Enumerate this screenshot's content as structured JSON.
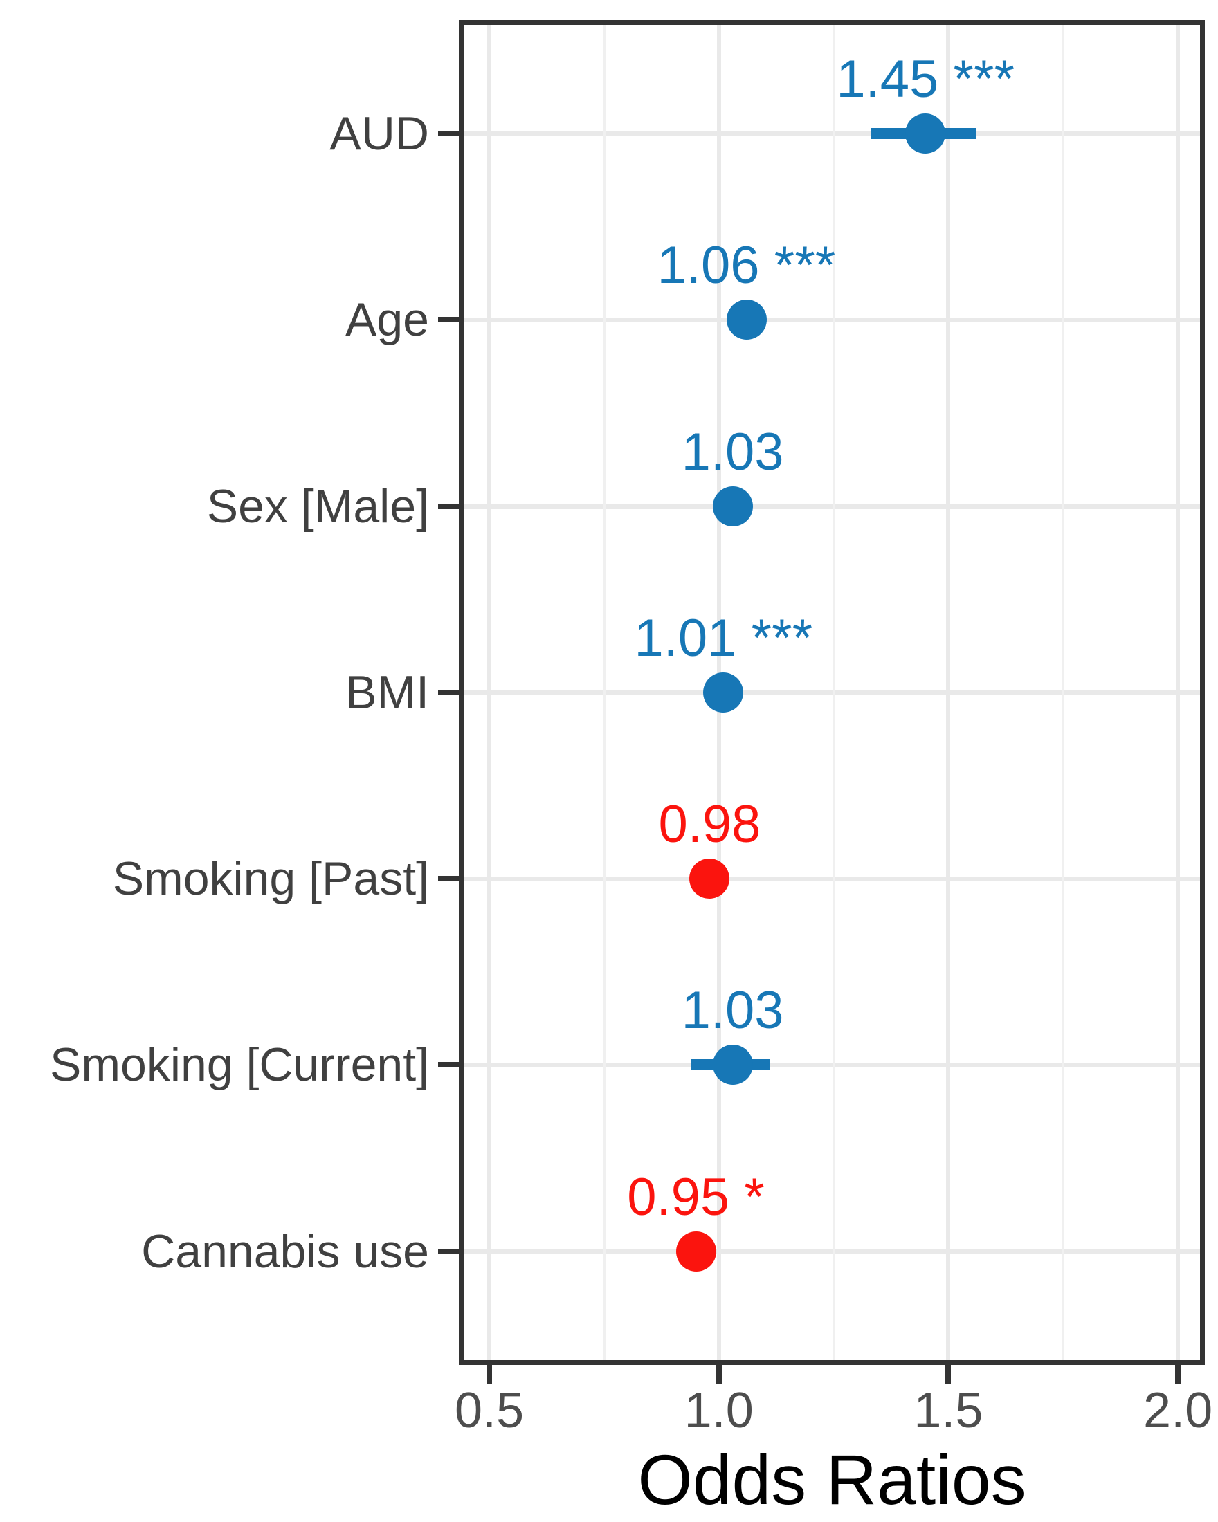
{
  "chart_data": {
    "type": "forest",
    "title": "",
    "xlabel": "Odds Ratios",
    "x_ticks": {
      "values": [
        0.5,
        1.0,
        1.5,
        2.0
      ],
      "labels": [
        "0.5",
        "1.0",
        "1.5",
        "2.0"
      ]
    },
    "x_minor_ticks": [
      0.75,
      1.25,
      1.75
    ],
    "xlim": [
      0.443,
      2.056
    ],
    "grid": "on",
    "legend_position": "none",
    "rows": [
      {
        "label": "AUD",
        "or": 1.45,
        "ci_lower": 1.33,
        "ci_upper": 1.56,
        "sig": "***",
        "display": "1.45 ***",
        "direction": "positive"
      },
      {
        "label": "Age",
        "or": 1.06,
        "ci_lower": 1.03,
        "ci_upper": 1.08,
        "sig": "***",
        "display": "1.06 ***",
        "direction": "positive"
      },
      {
        "label": "Sex [Male]",
        "or": 1.03,
        "ci_lower": 1.0,
        "ci_upper": 1.06,
        "sig": "",
        "display": "1.03",
        "direction": "positive"
      },
      {
        "label": "BMI",
        "or": 1.01,
        "ci_lower": 1.0,
        "ci_upper": 1.02,
        "sig": "***",
        "display": "1.01 ***",
        "direction": "positive"
      },
      {
        "label": "Smoking [Past]",
        "or": 0.98,
        "ci_lower": 0.95,
        "ci_upper": 1.02,
        "sig": "",
        "display": "0.98",
        "direction": "negative"
      },
      {
        "label": "Smoking [Current]",
        "or": 1.03,
        "ci_lower": 0.94,
        "ci_upper": 1.11,
        "sig": "",
        "display": "1.03",
        "direction": "positive"
      },
      {
        "label": "Cannabis use",
        "or": 0.95,
        "ci_lower": 0.92,
        "ci_upper": 0.99,
        "sig": "*",
        "display": "0.95 *",
        "direction": "negative"
      }
    ],
    "colors": {
      "positive": "#1777b6",
      "negative": "#fb140e",
      "grid_major": "#e9e9e9",
      "grid_minor": "#f0f0f0",
      "panel_border": "#333333",
      "tick": "#333333",
      "tick_label": "#4d4d4d",
      "category_label": "#404040",
      "axis_title": "#000000"
    }
  }
}
